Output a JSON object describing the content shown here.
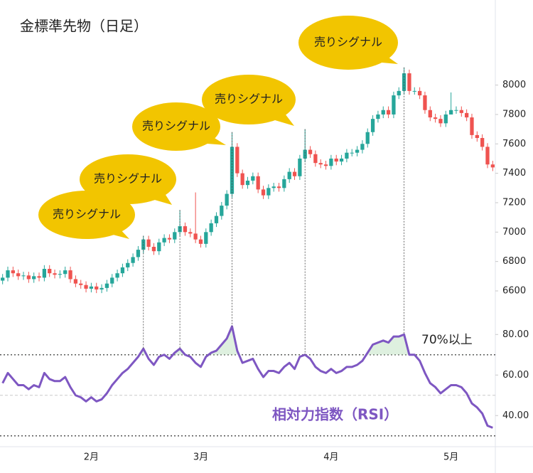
{
  "chart_data": {
    "type": "candlestick",
    "title": "金標準先物（日足）",
    "categories": [
      null,
      null,
      null,
      null,
      null,
      null,
      null,
      null,
      null,
      null,
      null,
      null,
      null,
      null,
      null,
      null,
      null,
      "2月",
      null,
      null,
      null,
      null,
      null,
      null,
      null,
      null,
      null,
      null,
      null,
      null,
      null,
      null,
      null,
      null,
      null,
      null,
      null,
      null,
      "3月",
      null,
      null,
      null,
      null,
      null,
      null,
      null,
      null,
      null,
      null,
      null,
      null,
      null,
      null,
      null,
      null,
      null,
      null,
      null,
      null,
      null,
      null,
      null,
      null,
      "4月",
      null,
      null,
      null,
      null,
      null,
      null,
      null,
      null,
      null,
      null,
      null,
      null,
      null,
      null,
      null,
      null,
      null,
      null,
      null,
      null,
      null,
      null,
      "5月",
      null,
      null,
      null,
      null,
      null,
      null,
      null,
      null
    ],
    "open": [
      6670,
      6690,
      6740,
      6720,
      6700,
      6705,
      6680,
      6700,
      6690,
      6750,
      6720,
      6710,
      6715,
      6740,
      6680,
      6650,
      6640,
      6615,
      6630,
      6610,
      6620,
      6650,
      6690,
      6720,
      6760,
      6790,
      6830,
      6880,
      6950,
      6900,
      6870,
      6930,
      6960,
      6950,
      7000,
      7040,
      7000,
      6990,
      6950,
      6920,
      7000,
      7060,
      7110,
      7180,
      7260,
      7580,
      7400,
      7320,
      7350,
      7380,
      7290,
      7250,
      7300,
      7310,
      7300,
      7360,
      7410,
      7380,
      7500,
      7560,
      7530,
      7470,
      7460,
      7450,
      7500,
      7480,
      7500,
      7540,
      7540,
      7560,
      7600,
      7680,
      7770,
      7800,
      7830,
      7800,
      7930,
      7960,
      8080,
      7960,
      7960,
      7930,
      7830,
      7780,
      7770,
      7740,
      7800,
      7830,
      7830,
      7810,
      7780,
      7660,
      7640,
      7580,
      7460
    ],
    "high": [
      6715,
      6765,
      6765,
      6745,
      6730,
      6730,
      6725,
      6725,
      6775,
      6775,
      6745,
      6740,
      6765,
      6765,
      6705,
      6675,
      6665,
      6655,
      6655,
      6645,
      6675,
      6715,
      6745,
      6785,
      6815,
      6855,
      6905,
      6975,
      6975,
      6925,
      6955,
      6985,
      6985,
      7025,
      7150,
      7065,
      7025,
      7270,
      6975,
      7025,
      7085,
      7135,
      7205,
      7285,
      7680,
      7605,
      7425,
      7375,
      7405,
      7405,
      7315,
      7325,
      7335,
      7335,
      7385,
      7435,
      7435,
      7525,
      7700,
      7585,
      7555,
      7495,
      7485,
      7525,
      7525,
      7525,
      7565,
      7565,
      7585,
      7625,
      7705,
      7795,
      7825,
      7855,
      7855,
      7955,
      7985,
      8120,
      8105,
      7985,
      7985,
      7955,
      7855,
      7805,
      7795,
      7825,
      7950,
      7855,
      7855,
      7835,
      7805,
      7685,
      7665,
      7605,
      7485
    ],
    "low": [
      6645,
      6665,
      6695,
      6675,
      6675,
      6655,
      6655,
      6665,
      6665,
      6695,
      6685,
      6685,
      6690,
      6655,
      6625,
      6615,
      6590,
      6590,
      6585,
      6585,
      6595,
      6625,
      6665,
      6695,
      6735,
      6765,
      6805,
      6855,
      6875,
      6845,
      6845,
      6905,
      6925,
      6925,
      6975,
      6975,
      6965,
      6925,
      6895,
      6895,
      6975,
      7035,
      7085,
      7155,
      7235,
      7375,
      7295,
      7295,
      7325,
      7265,
      7225,
      7225,
      7275,
      7275,
      7275,
      7335,
      7355,
      7355,
      7475,
      7505,
      7445,
      7435,
      7425,
      7425,
      7455,
      7455,
      7475,
      7515,
      7515,
      7535,
      7575,
      7655,
      7745,
      7775,
      7775,
      7775,
      7905,
      7935,
      7935,
      7935,
      7905,
      7805,
      7755,
      7745,
      7715,
      7715,
      7805,
      7805,
      7785,
      7755,
      7635,
      7615,
      7555,
      7435,
      7415
    ],
    "close": [
      6690,
      6740,
      6720,
      6700,
      6705,
      6680,
      6700,
      6690,
      6750,
      6720,
      6710,
      6715,
      6740,
      6680,
      6650,
      6640,
      6615,
      6630,
      6610,
      6620,
      6650,
      6690,
      6720,
      6760,
      6790,
      6830,
      6880,
      6950,
      6900,
      6870,
      6930,
      6960,
      6950,
      7000,
      7040,
      7000,
      6990,
      6950,
      6920,
      7000,
      7060,
      7110,
      7180,
      7260,
      7580,
      7400,
      7320,
      7350,
      7380,
      7290,
      7250,
      7300,
      7310,
      7300,
      7360,
      7410,
      7380,
      7500,
      7560,
      7530,
      7470,
      7460,
      7450,
      7500,
      7480,
      7500,
      7540,
      7540,
      7560,
      7600,
      7680,
      7770,
      7800,
      7830,
      7800,
      7930,
      7960,
      8080,
      7960,
      7960,
      7930,
      7830,
      7780,
      7770,
      7740,
      7800,
      7830,
      7830,
      7810,
      7780,
      7660,
      7640,
      7580,
      7460,
      7440
    ],
    "up_color": "#26a69a",
    "down_color": "#ef5350",
    "ylim": [
      6450,
      8240
    ],
    "yticks": [
      6600,
      6800,
      7000,
      7200,
      7400,
      7600,
      7800,
      8000
    ],
    "signals": [
      {
        "index": 27,
        "label": "売りシグナル"
      },
      {
        "index": 34,
        "label": "売りシグナル"
      },
      {
        "index": 44,
        "label": "売りシグナル"
      },
      {
        "index": 58,
        "label": "売りシグナル"
      },
      {
        "index": 77,
        "label": "売りシグナル"
      }
    ],
    "indicator": {
      "type": "line",
      "name": "相対力指数（RSI）",
      "color": "#7e57c2",
      "values": [
        56,
        61,
        58,
        55,
        55,
        53,
        55,
        54,
        61,
        58,
        57,
        57,
        59,
        54,
        50,
        49,
        47,
        49,
        47,
        48,
        51,
        55,
        58,
        61,
        63,
        66,
        69,
        73,
        68,
        65,
        69,
        70,
        68,
        71,
        73,
        70,
        69,
        66,
        64,
        69,
        71,
        72,
        75,
        78,
        84,
        72,
        66,
        67,
        68,
        63,
        59,
        62,
        62,
        61,
        64,
        66,
        63,
        69,
        70,
        68,
        64,
        62,
        61,
        63,
        61,
        62,
        64,
        64,
        65,
        67,
        71,
        75,
        76,
        77,
        76,
        79,
        79,
        80,
        70,
        70,
        67,
        61,
        56,
        54,
        51,
        53,
        55,
        55,
        54,
        51,
        46,
        44,
        41,
        35,
        34
      ],
      "ylim": [
        25,
        85
      ],
      "yticks": [
        {
          "value": 40,
          "label": "40.00"
        },
        {
          "value": 60,
          "label": "60.00"
        },
        {
          "value": 80,
          "label": "80.00"
        }
      ],
      "reference_lines": [
        70,
        50,
        30
      ],
      "annotation": "70%以上"
    }
  }
}
